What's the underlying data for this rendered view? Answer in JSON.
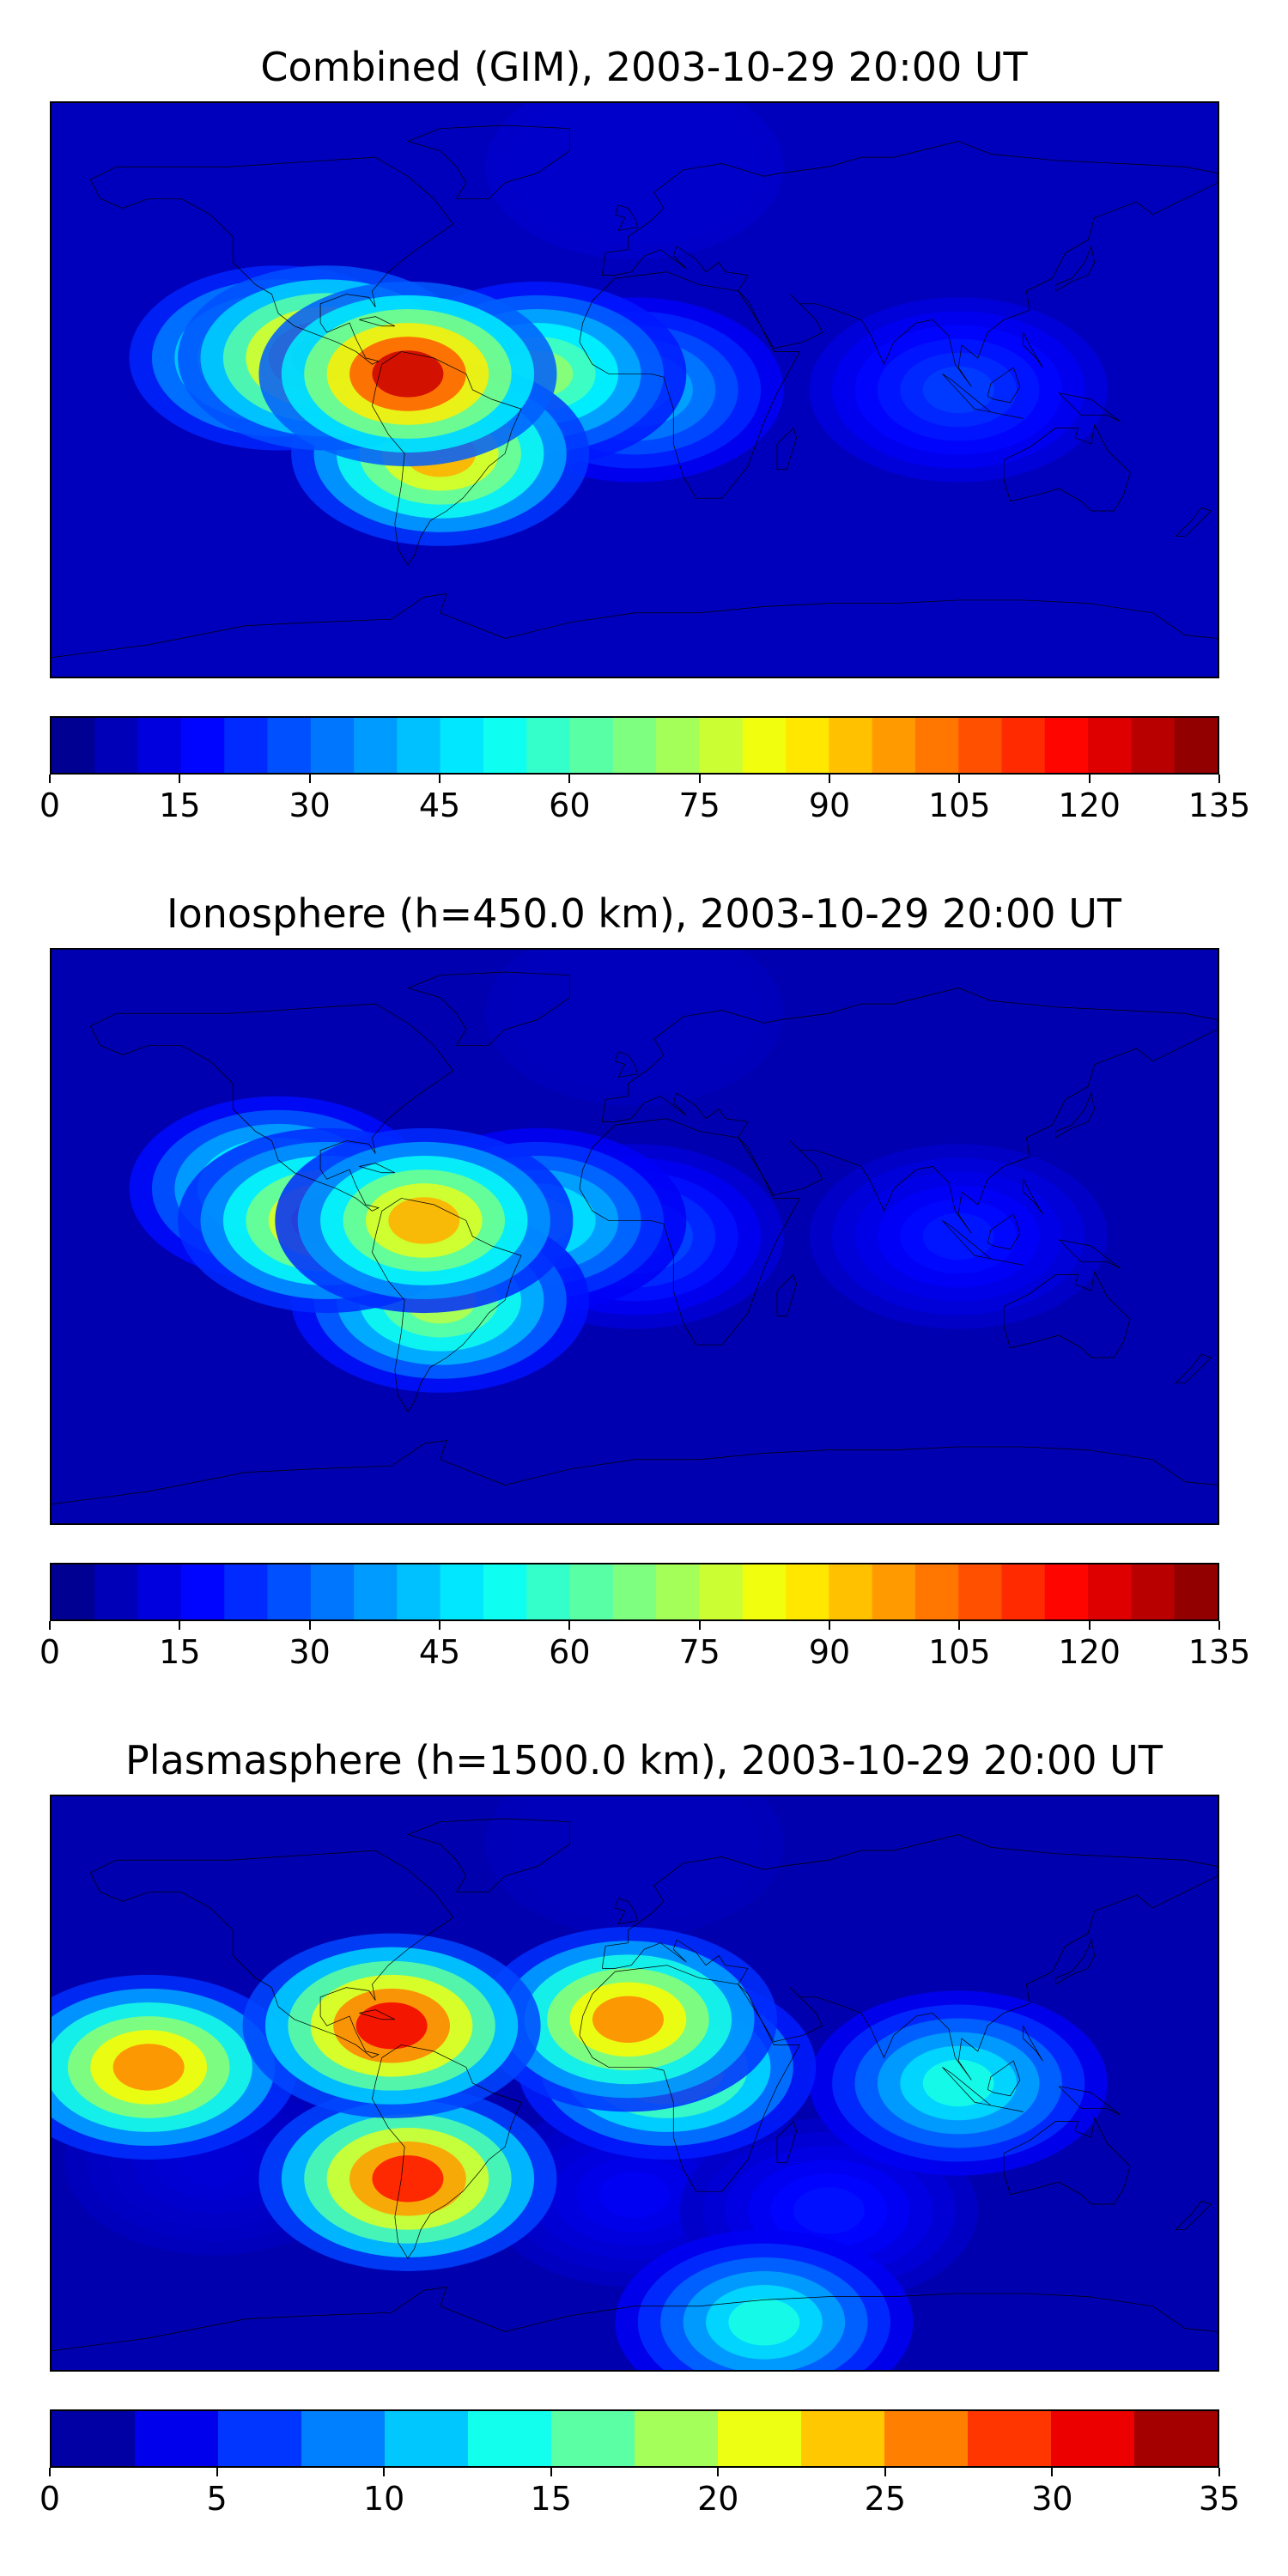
{
  "chart_data": [
    {
      "type": "heatmap",
      "title": "Combined (GIM), 2003-10-29 20:00 UT",
      "colorbar": {
        "min": 0,
        "max": 135,
        "step": 5,
        "ticks": [
          0,
          15,
          30,
          45,
          60,
          75,
          90,
          105,
          120,
          135
        ]
      },
      "map": "world coastlines, equirectangular",
      "features": [
        {
          "lon": -70,
          "lat": 5,
          "value": 125
        },
        {
          "lon": -95,
          "lat": 10,
          "value": 115
        },
        {
          "lon": -110,
          "lat": 10,
          "value": 80
        },
        {
          "lon": -60,
          "lat": -20,
          "value": 95
        },
        {
          "lon": -30,
          "lat": 5,
          "value": 70
        },
        {
          "lon": 0,
          "lat": 0,
          "value": 45
        },
        {
          "lon": 100,
          "lat": 0,
          "value": 25
        },
        {
          "lon": 0,
          "lat": 70,
          "value": 10
        }
      ]
    },
    {
      "type": "heatmap",
      "title": "Ionosphere  (h=450.0 km), 2003-10-29 20:00 UT",
      "colorbar": {
        "min": 0,
        "max": 135,
        "step": 5,
        "ticks": [
          0,
          15,
          30,
          45,
          60,
          75,
          90,
          105,
          120,
          135
        ]
      },
      "map": "world coastlines, equirectangular",
      "features": [
        {
          "lon": -95,
          "lat": 5,
          "value": 95
        },
        {
          "lon": -65,
          "lat": 5,
          "value": 95
        },
        {
          "lon": -110,
          "lat": 15,
          "value": 70
        },
        {
          "lon": -60,
          "lat": -20,
          "value": 75
        },
        {
          "lon": -30,
          "lat": 5,
          "value": 55
        },
        {
          "lon": 0,
          "lat": 0,
          "value": 30
        },
        {
          "lon": 100,
          "lat": 0,
          "value": 20
        },
        {
          "lon": 0,
          "lat": 70,
          "value": 8
        }
      ]
    },
    {
      "type": "heatmap",
      "title": "Plasmasphere (h=1500.0 km), 2003-10-29 20:00 UT",
      "colorbar": {
        "min": 0,
        "max": 35,
        "step": 2.5,
        "ticks": [
          0,
          5,
          10,
          15,
          20,
          25,
          30,
          35
        ]
      },
      "map": "world coastlines, equirectangular",
      "features": [
        {
          "lon": -75,
          "lat": 18,
          "value": 31
        },
        {
          "lon": -150,
          "lat": 5,
          "value": 26
        },
        {
          "lon": -70,
          "lat": -30,
          "value": 30
        },
        {
          "lon": -2,
          "lat": 20,
          "value": 26
        },
        {
          "lon": 10,
          "lat": 5,
          "value": 22
        },
        {
          "lon": -130,
          "lat": -25,
          "value": 3
        },
        {
          "lon": 0,
          "lat": -35,
          "value": 4
        },
        {
          "lon": 60,
          "lat": -40,
          "value": 5
        },
        {
          "lon": 100,
          "lat": 0,
          "value": 14
        },
        {
          "lon": 0,
          "lat": 75,
          "value": 2
        },
        {
          "lon": 40,
          "lat": -75,
          "value": 14
        }
      ]
    }
  ],
  "colors": {
    "jet": [
      "#00007f",
      "#0000ff",
      "#007fff",
      "#00ffff",
      "#7fff7f",
      "#ffff00",
      "#ff7f00",
      "#ff0000",
      "#7f0000"
    ],
    "coastline": "#000000"
  }
}
